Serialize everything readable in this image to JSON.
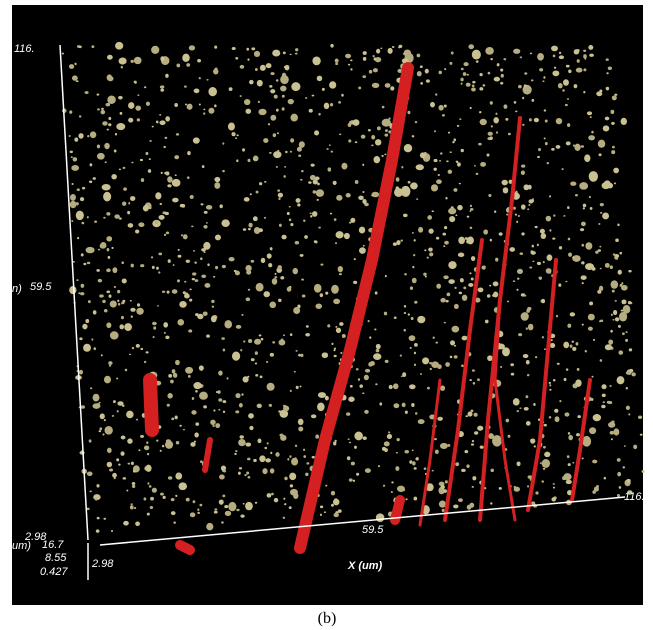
{
  "figure": {
    "caption": "(b)",
    "y_axis": {
      "title_fragment": "n)",
      "ticks": [
        "116.",
        "59.5",
        "2.98"
      ]
    },
    "z_axis": {
      "title_fragment": "um)",
      "ticks": [
        "16.7",
        "8.55",
        "0.427"
      ]
    },
    "x_axis": {
      "title": "X (um)",
      "ticks": [
        "2.98",
        "59.5",
        "116."
      ]
    }
  }
}
